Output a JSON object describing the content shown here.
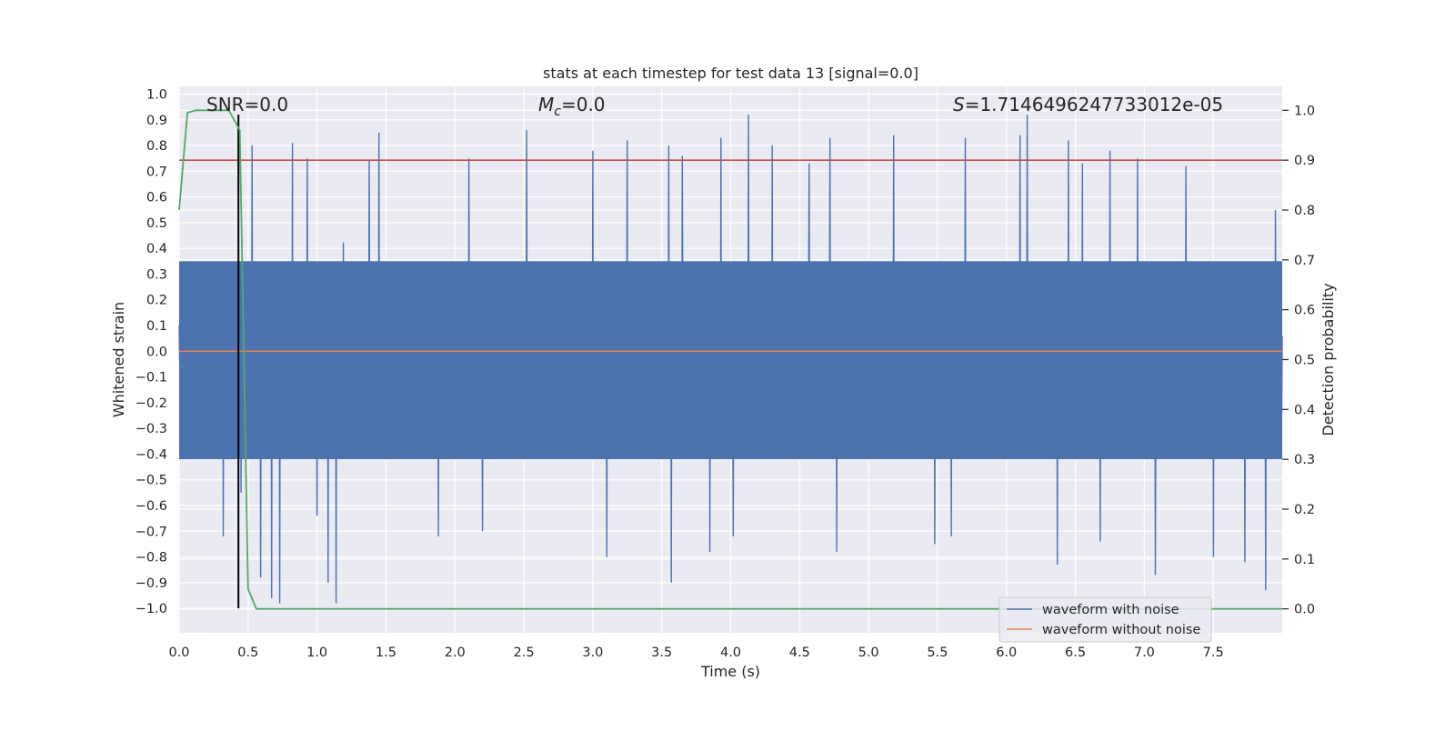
{
  "chart_data": {
    "type": "line",
    "title": "stats at each timestep for test data 13 [signal=0.0]",
    "xlabel": "Time (s)",
    "ylabel": "Whitened strain",
    "y2label": "Detection probability",
    "xlim": [
      0.0,
      8.0
    ],
    "ylim": [
      -1.095,
      1.03
    ],
    "y2lim": [
      -0.048,
      1.048
    ],
    "x_ticks": [
      "0.0",
      "0.5",
      "1.0",
      "1.5",
      "2.0",
      "2.5",
      "3.0",
      "3.5",
      "4.0",
      "4.5",
      "5.0",
      "5.5",
      "6.0",
      "6.5",
      "7.0",
      "7.5"
    ],
    "y_ticks": [
      "1.0",
      "0.9",
      "0.8",
      "0.7",
      "0.6",
      "0.5",
      "0.4",
      "0.3",
      "0.2",
      "0.1",
      "0.0",
      "−0.1",
      "−0.2",
      "−0.3",
      "−0.4",
      "−0.5",
      "−0.6",
      "−0.7",
      "−0.8",
      "−0.9",
      "−1.0"
    ],
    "y2_ticks": [
      "1.0",
      "0.9",
      "0.8",
      "0.7",
      "0.6",
      "0.5",
      "0.4",
      "0.3",
      "0.2",
      "0.1",
      "0.0"
    ],
    "grid": true,
    "legend_position": "lower-right",
    "annotations": {
      "snr": "SNR=0.0",
      "mc_symbol": "M",
      "mc_sub": "c",
      "mc_value": "=0.0",
      "s_symbol": "S",
      "s_value": "=1.7146496247733012e-05"
    },
    "series": [
      {
        "name": "waveform with noise",
        "axis": "left",
        "color": "#4c72b0",
        "description_note": "dense noise samples",
        "band_upper": 0.35,
        "band_lower": -0.42,
        "peaks_up": [
          [
            0.45,
            0.52
          ],
          [
            0.53,
            0.8
          ],
          [
            0.82,
            0.81
          ],
          [
            0.93,
            0.75
          ],
          [
            1.38,
            0.74
          ],
          [
            1.45,
            0.85
          ],
          [
            2.1,
            0.75
          ],
          [
            2.52,
            0.86
          ],
          [
            3.0,
            0.78
          ],
          [
            3.25,
            0.82
          ],
          [
            3.55,
            0.8
          ],
          [
            3.65,
            0.76
          ],
          [
            3.93,
            0.83
          ],
          [
            4.13,
            0.92
          ],
          [
            4.3,
            0.8
          ],
          [
            4.57,
            0.73
          ],
          [
            4.72,
            0.83
          ],
          [
            5.18,
            0.84
          ],
          [
            5.7,
            0.83
          ],
          [
            6.1,
            0.84
          ],
          [
            6.15,
            0.92
          ],
          [
            6.45,
            0.82
          ],
          [
            6.55,
            0.73
          ],
          [
            6.75,
            0.78
          ],
          [
            6.95,
            0.75
          ],
          [
            7.3,
            0.72
          ],
          [
            7.95,
            0.55
          ]
        ],
        "peaks_down": [
          [
            0.32,
            -0.72
          ],
          [
            0.45,
            -0.55
          ],
          [
            0.59,
            -0.88
          ],
          [
            0.67,
            -0.96
          ],
          [
            0.73,
            -0.98
          ],
          [
            1.0,
            -0.64
          ],
          [
            1.08,
            -0.9
          ],
          [
            1.14,
            -0.98
          ],
          [
            1.88,
            -0.72
          ],
          [
            2.2,
            -0.7
          ],
          [
            3.1,
            -0.8
          ],
          [
            3.57,
            -0.9
          ],
          [
            3.85,
            -0.78
          ],
          [
            4.02,
            -0.72
          ],
          [
            4.77,
            -0.78
          ],
          [
            5.48,
            -0.75
          ],
          [
            5.6,
            -0.72
          ],
          [
            6.37,
            -0.83
          ],
          [
            6.68,
            -0.74
          ],
          [
            7.08,
            -0.87
          ],
          [
            7.5,
            -0.8
          ],
          [
            7.73,
            -0.82
          ],
          [
            7.88,
            -0.93
          ]
        ]
      },
      {
        "name": "waveform without noise",
        "axis": "left",
        "color": "#dd8452",
        "x": [
          0.0,
          8.0
        ],
        "y": [
          0.0,
          0.0
        ]
      },
      {
        "axis": "right",
        "color": "#55a868",
        "x": [
          0.0,
          0.06,
          0.12,
          0.24,
          0.36,
          0.44,
          0.5,
          0.56,
          0.62,
          1.2,
          4.0,
          8.0
        ],
        "y": [
          0.8,
          0.995,
          1.0,
          1.0,
          1.0,
          0.96,
          0.04,
          0.0,
          0.0,
          0.0,
          0.0,
          0.0
        ]
      }
    ],
    "threshold": {
      "axis": "right",
      "value": 0.9,
      "color": "#c44e52"
    },
    "marker": {
      "x": 0.43,
      "y_from": -1.0,
      "y_to": 0.92,
      "color": "#000000"
    },
    "legend": [
      {
        "label": "waveform with noise",
        "color": "#4c72b0"
      },
      {
        "label": "waveform without noise",
        "color": "#dd8452"
      }
    ],
    "colors": {
      "plot_background": "#eaeaf2",
      "grid": "#ffffff"
    }
  }
}
